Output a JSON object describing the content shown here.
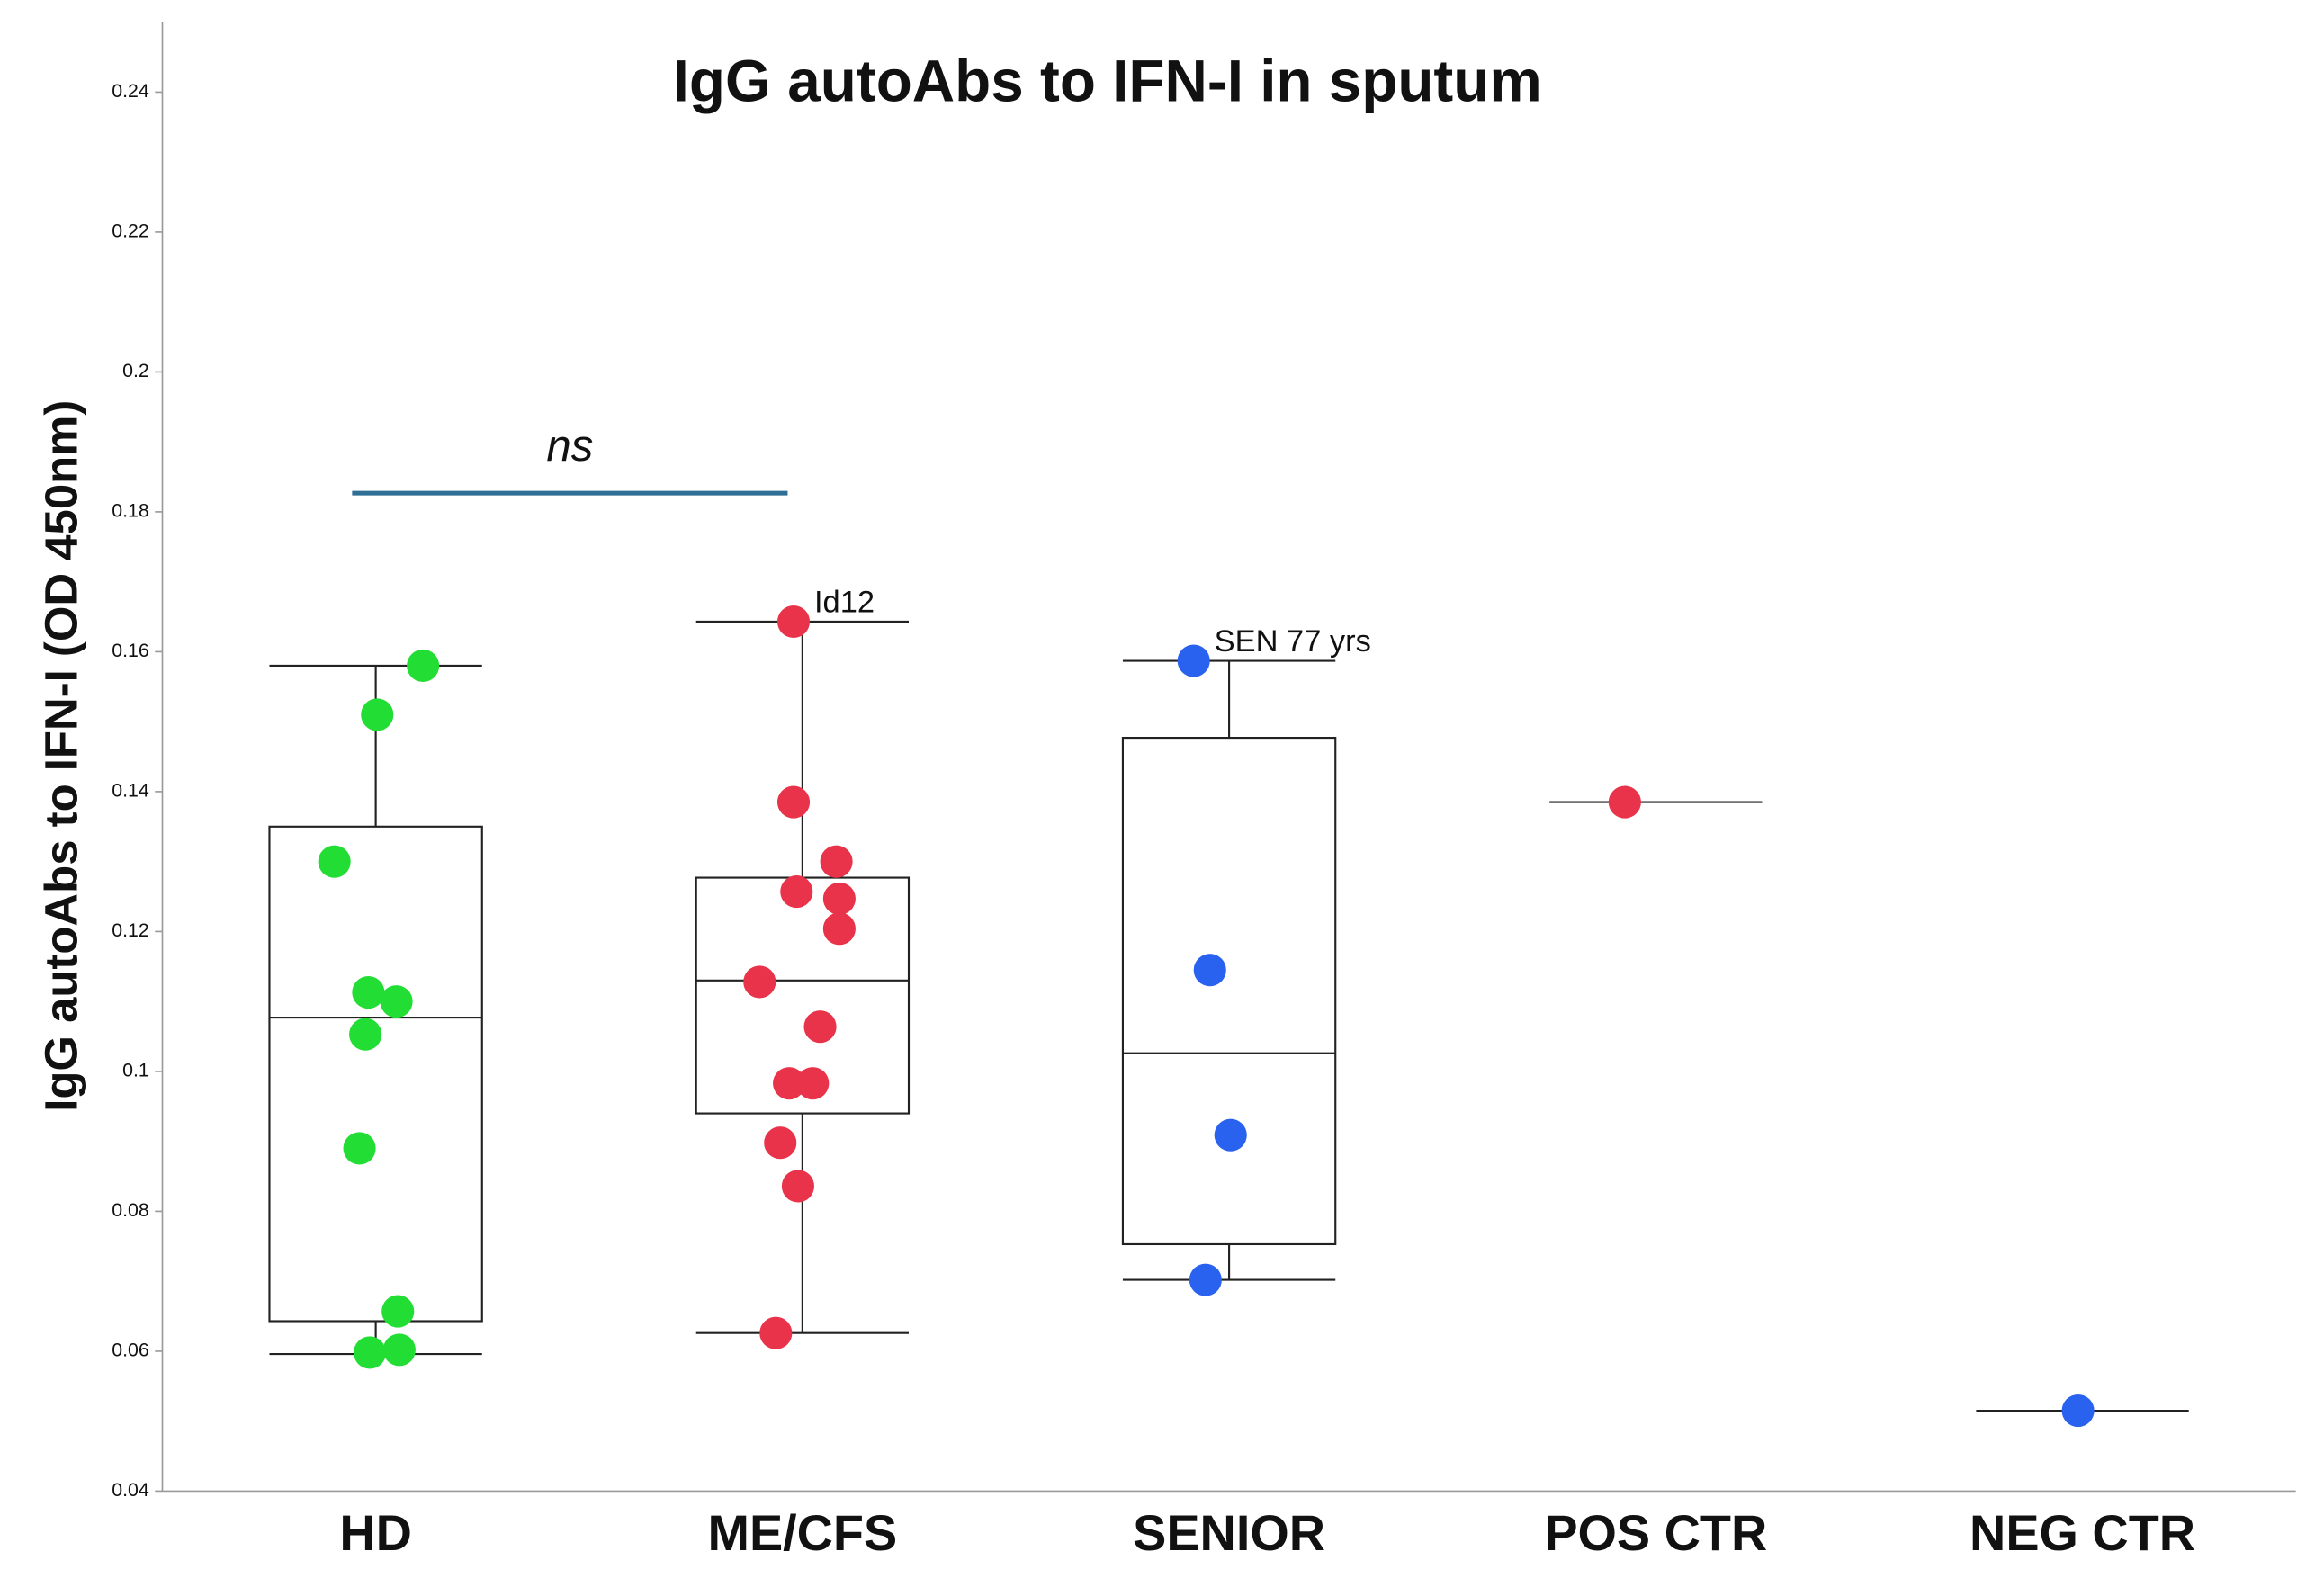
{
  "chart_data": {
    "type": "box",
    "title": "IgG autoAbs to IFN-I in sputum",
    "y_label": "IgG autoAbs to IFN-I (OD 450nm)",
    "ylim": [
      0.04,
      0.25
    ],
    "yticks": [
      0.04,
      0.06,
      0.08,
      0.1,
      0.12,
      0.14,
      0.16,
      0.18,
      0.2,
      0.22,
      0.24
    ],
    "groups": [
      {
        "name": "HD",
        "color": "#22dd33",
        "values": [
          0.158,
          0.151,
          0.13,
          0.1113,
          0.11,
          0.1053,
          0.089,
          0.0657,
          0.0598,
          0.0602
        ],
        "box": {
          "whisker_low": 0.0596,
          "q1": 0.0643,
          "median": 0.1077,
          "q3": 0.135,
          "whisker_high": 0.158
        }
      },
      {
        "name": "ME/CFS",
        "color": "#e8334a",
        "values": [
          0.1643,
          0.1385,
          0.13,
          0.1257,
          0.1247,
          0.1204,
          0.1128,
          0.1064,
          0.0983,
          0.0983,
          0.0898,
          0.0836,
          0.0626
        ],
        "box": {
          "whisker_low": 0.0626,
          "q1": 0.094,
          "median": 0.113,
          "q3": 0.1277,
          "whisker_high": 0.1643
        }
      },
      {
        "name": "SENIOR",
        "color": "#2a62f0",
        "values": [
          0.1587,
          0.1145,
          0.0909,
          0.0702
        ],
        "box": {
          "whisker_low": 0.0702,
          "q1": 0.0753,
          "median": 0.1026,
          "q3": 0.1477,
          "whisker_high": 0.1587
        }
      },
      {
        "name": "POS CTR",
        "color": "#e8334a",
        "values": [
          0.1385
        ],
        "box": {
          "median": 0.1385
        }
      },
      {
        "name": "NEG CTR",
        "color": "#2a62f0",
        "values": [
          0.0515
        ],
        "box": {
          "median": 0.0515
        }
      }
    ],
    "significance": {
      "text": "ns",
      "from": "HD",
      "to": "ME/CFS"
    },
    "annotations": [
      {
        "text": "Id12",
        "group": "ME/CFS",
        "point": 0
      },
      {
        "text": "SEN 77 yrs",
        "group": "SENIOR",
        "point": 0
      }
    ]
  }
}
